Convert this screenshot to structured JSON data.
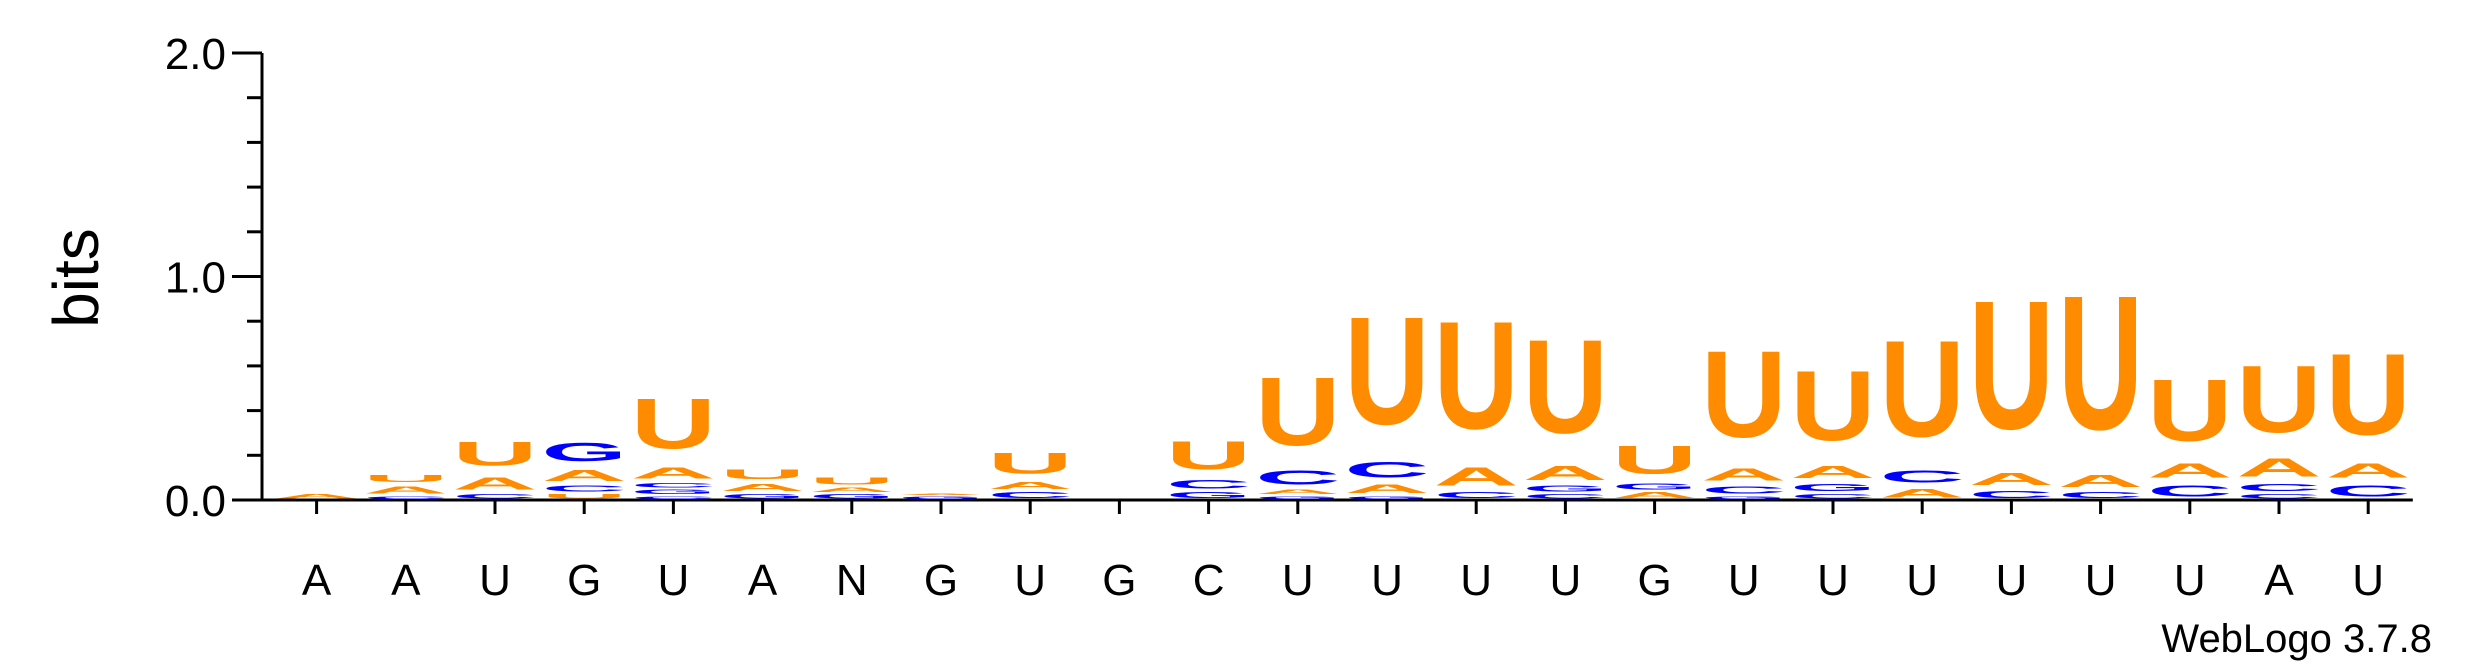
{
  "chart_data": {
    "type": "sequence-logo",
    "ylabel": "bits",
    "ylim": [
      0,
      2.0
    ],
    "yticks": [
      "0.0",
      "1.0",
      "2.0"
    ],
    "credit": "WebLogo 3.7.8",
    "colors": {
      "U": "#ff8c00",
      "A": "#ff8c00",
      "C": "#0000ff",
      "G": "#0000ff",
      "N": "#000000"
    },
    "positions": [
      {
        "label": "A",
        "stack": [
          {
            "letter": "A",
            "bits": 0.03
          }
        ]
      },
      {
        "label": "A",
        "stack": [
          {
            "letter": "C",
            "bits": 0.02
          },
          {
            "letter": "A",
            "bits": 0.05
          },
          {
            "letter": "U",
            "bits": 0.05
          }
        ]
      },
      {
        "label": "U",
        "stack": [
          {
            "letter": "C",
            "bits": 0.03
          },
          {
            "letter": "A",
            "bits": 0.09
          },
          {
            "letter": "U",
            "bits": 0.17
          }
        ]
      },
      {
        "label": "G",
        "stack": [
          {
            "letter": "U",
            "bits": 0.03
          },
          {
            "letter": "C",
            "bits": 0.04
          },
          {
            "letter": "A",
            "bits": 0.08
          },
          {
            "letter": "G",
            "bits": 0.13
          }
        ]
      },
      {
        "label": "U",
        "stack": [
          {
            "letter": "C",
            "bits": 0.02
          },
          {
            "letter": "G",
            "bits": 0.03
          },
          {
            "letter": "C",
            "bits": 0.03
          },
          {
            "letter": "A",
            "bits": 0.08
          },
          {
            "letter": "U",
            "bits": 0.36
          }
        ]
      },
      {
        "label": "A",
        "stack": [
          {
            "letter": "G",
            "bits": 0.03
          },
          {
            "letter": "A",
            "bits": 0.05
          },
          {
            "letter": "U",
            "bits": 0.07
          }
        ]
      },
      {
        "label": "N",
        "stack": [
          {
            "letter": "G",
            "bits": 0.03
          },
          {
            "letter": "A",
            "bits": 0.03
          },
          {
            "letter": "U",
            "bits": 0.05
          }
        ]
      },
      {
        "label": "G",
        "stack": [
          {
            "letter": "G",
            "bits": 0.02
          },
          {
            "letter": "A",
            "bits": 0.01
          }
        ]
      },
      {
        "label": "U",
        "stack": [
          {
            "letter": "C",
            "bits": 0.04
          },
          {
            "letter": "A",
            "bits": 0.05
          },
          {
            "letter": "U",
            "bits": 0.15
          }
        ]
      },
      {
        "label": "G",
        "stack": []
      },
      {
        "label": "C",
        "stack": [
          {
            "letter": "G",
            "bits": 0.04
          },
          {
            "letter": "C",
            "bits": 0.06
          },
          {
            "letter": "U",
            "bits": 0.2
          }
        ]
      },
      {
        "label": "U",
        "stack": [
          {
            "letter": "G",
            "bits": 0.02
          },
          {
            "letter": "A",
            "bits": 0.03
          },
          {
            "letter": "C",
            "bits": 0.1
          },
          {
            "letter": "U",
            "bits": 0.49
          }
        ]
      },
      {
        "label": "U",
        "stack": [
          {
            "letter": "G",
            "bits": 0.02
          },
          {
            "letter": "A",
            "bits": 0.06
          },
          {
            "letter": "C",
            "bits": 0.11
          },
          {
            "letter": "U",
            "bits": 0.77
          }
        ]
      },
      {
        "label": "U",
        "stack": [
          {
            "letter": "C",
            "bits": 0.04
          },
          {
            "letter": "A",
            "bits": 0.13
          },
          {
            "letter": "U",
            "bits": 0.77
          }
        ]
      },
      {
        "label": "U",
        "stack": [
          {
            "letter": "C",
            "bits": 0.03
          },
          {
            "letter": "G",
            "bits": 0.04
          },
          {
            "letter": "A",
            "bits": 0.1
          },
          {
            "letter": "U",
            "bits": 0.67
          }
        ]
      },
      {
        "label": "G",
        "stack": [
          {
            "letter": "A",
            "bits": 0.04
          },
          {
            "letter": "G",
            "bits": 0.04
          },
          {
            "letter": "U",
            "bits": 0.2
          }
        ]
      },
      {
        "label": "U",
        "stack": [
          {
            "letter": "G",
            "bits": 0.02
          },
          {
            "letter": "C",
            "bits": 0.05
          },
          {
            "letter": "A",
            "bits": 0.09
          },
          {
            "letter": "U",
            "bits": 0.62
          }
        ]
      },
      {
        "label": "U",
        "stack": [
          {
            "letter": "C",
            "bits": 0.03
          },
          {
            "letter": "G",
            "bits": 0.05
          },
          {
            "letter": "A",
            "bits": 0.09
          },
          {
            "letter": "U",
            "bits": 0.5
          }
        ]
      },
      {
        "label": "U",
        "stack": [
          {
            "letter": "A",
            "bits": 0.06
          },
          {
            "letter": "C",
            "bits": 0.09
          },
          {
            "letter": "U",
            "bits": 0.69
          }
        ]
      },
      {
        "label": "U",
        "stack": [
          {
            "letter": "C",
            "bits": 0.05
          },
          {
            "letter": "A",
            "bits": 0.09
          },
          {
            "letter": "U",
            "bits": 0.92
          }
        ]
      },
      {
        "label": "U",
        "stack": [
          {
            "letter": "C",
            "bits": 0.04
          },
          {
            "letter": "A",
            "bits": 0.09
          },
          {
            "letter": "U",
            "bits": 0.96
          }
        ]
      },
      {
        "label": "U",
        "stack": [
          {
            "letter": "C",
            "bits": 0.08
          },
          {
            "letter": "A",
            "bits": 0.1
          },
          {
            "letter": "U",
            "bits": 0.44
          }
        ]
      },
      {
        "label": "A",
        "stack": [
          {
            "letter": "C",
            "bits": 0.03
          },
          {
            "letter": "C",
            "bits": 0.05
          },
          {
            "letter": "A",
            "bits": 0.13
          },
          {
            "letter": "U",
            "bits": 0.48
          }
        ]
      },
      {
        "label": "U",
        "stack": [
          {
            "letter": "C",
            "bits": 0.08
          },
          {
            "letter": "A",
            "bits": 0.1
          },
          {
            "letter": "U",
            "bits": 0.58
          }
        ]
      }
    ]
  }
}
